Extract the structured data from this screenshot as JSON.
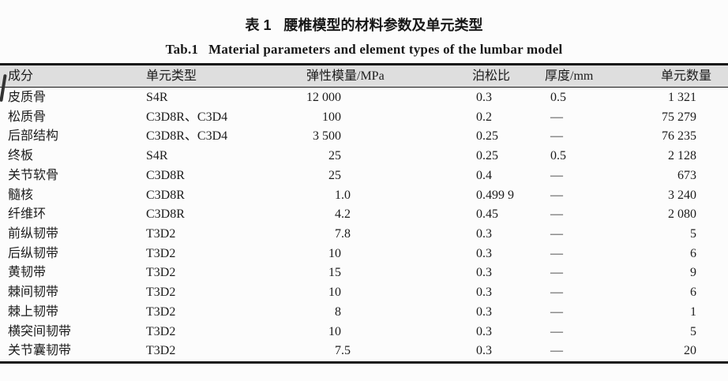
{
  "page": {
    "title_zh": {
      "prefix": "表 1",
      "text": "腰椎模型的材料参数及单元类型"
    },
    "title_en": {
      "prefix": "Tab.1",
      "text": "Material parameters and element types of the lumbar model"
    }
  },
  "table": {
    "columns": [
      "成分",
      "单元类型",
      "弹性模量/MPa",
      "泊松比",
      "厚度/mm",
      "单元数量"
    ],
    "rows": [
      {
        "component": "皮质骨",
        "element_type": "S4R",
        "modulus": "12 000",
        "poisson": "0.3",
        "thickness": "0.5",
        "count": "1 321"
      },
      {
        "component": "松质骨",
        "element_type": "C3D8R、C3D4",
        "modulus": "100",
        "poisson": "0.2",
        "thickness": "—",
        "count": "75 279"
      },
      {
        "component": "后部结构",
        "element_type": "C3D8R、C3D4",
        "modulus": "3 500",
        "poisson": "0.25",
        "thickness": "—",
        "count": "76 235"
      },
      {
        "component": "终板",
        "element_type": "S4R",
        "modulus": "25",
        "poisson": "0.25",
        "thickness": "0.5",
        "count": "2 128"
      },
      {
        "component": "关节软骨",
        "element_type": "C3D8R",
        "modulus": "25",
        "poisson": "0.4",
        "thickness": "—",
        "count": "673"
      },
      {
        "component": "髓核",
        "element_type": "C3D8R",
        "modulus": "1.0",
        "poisson": "0.499 9",
        "thickness": "—",
        "count": "3 240"
      },
      {
        "component": "纤维环",
        "element_type": "C3D8R",
        "modulus": "4.2",
        "poisson": "0.45",
        "thickness": "—",
        "count": "2 080"
      },
      {
        "component": "前纵韧带",
        "element_type": "T3D2",
        "modulus": "7.8",
        "poisson": "0.3",
        "thickness": "—",
        "count": "5"
      },
      {
        "component": "后纵韧带",
        "element_type": "T3D2",
        "modulus": "10",
        "poisson": "0.3",
        "thickness": "—",
        "count": "6"
      },
      {
        "component": "黄韧带",
        "element_type": "T3D2",
        "modulus": "15",
        "poisson": "0.3",
        "thickness": "—",
        "count": "9"
      },
      {
        "component": "棘间韧带",
        "element_type": "T3D2",
        "modulus": "10",
        "poisson": "0.3",
        "thickness": "—",
        "count": "6"
      },
      {
        "component": "棘上韧带",
        "element_type": "T3D2",
        "modulus": "8",
        "poisson": "0.3",
        "thickness": "—",
        "count": "1"
      },
      {
        "component": "横突间韧带",
        "element_type": "T3D2",
        "modulus": "10",
        "poisson": "0.3",
        "thickness": "—",
        "count": "5"
      },
      {
        "component": "关节囊韧带",
        "element_type": "T3D2",
        "modulus": "7.5",
        "poisson": "0.3",
        "thickness": "—",
        "count": "20"
      }
    ],
    "colors": {
      "header_bg": "#dedede",
      "ink": "#1c1c1c",
      "border": "#161616"
    }
  }
}
